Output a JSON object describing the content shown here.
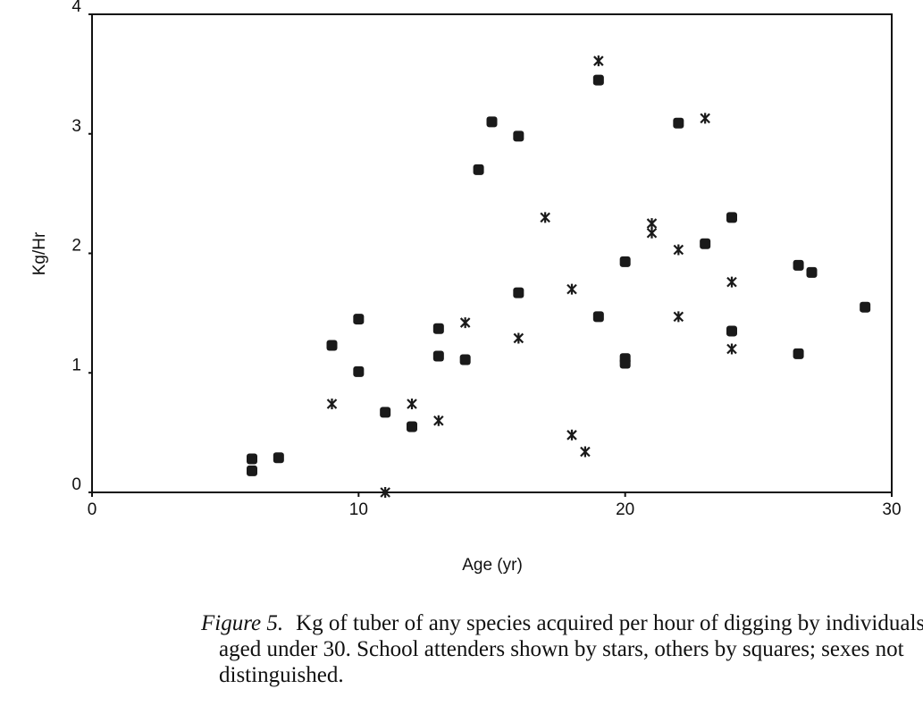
{
  "chart_data": {
    "type": "scatter",
    "xlabel": "Age (yr)",
    "ylabel": "Kg/Hr",
    "caption_label": "Figure 5.",
    "caption": "Kg of tuber of any species acquired per hour of digging by individuals aged under 30. School attenders shown by stars, others by squares; sexes not distinguished.",
    "xlim": [
      0,
      30
    ],
    "xticks": [
      0,
      10,
      20,
      30
    ],
    "ylim": [
      0,
      4
    ],
    "yticks": [
      0,
      1,
      2,
      3,
      4
    ],
    "series": [
      {
        "marker": "square",
        "color": "#1a1a1a",
        "x": [
          6,
          6,
          7,
          9,
          10,
          10,
          11,
          12,
          13,
          13,
          14,
          14.5,
          15,
          16,
          16,
          19,
          19,
          20,
          20,
          20,
          22,
          23,
          24,
          24,
          26.5,
          27,
          26.5,
          29
        ],
        "values": [
          0.28,
          0.18,
          0.29,
          1.23,
          1.45,
          1.01,
          0.67,
          0.55,
          1.37,
          1.14,
          1.11,
          2.7,
          3.1,
          2.98,
          1.67,
          3.45,
          1.47,
          1.93,
          1.12,
          1.08,
          3.09,
          2.08,
          2.3,
          1.35,
          1.9,
          1.84,
          1.16,
          1.55
        ]
      },
      {
        "marker": "star",
        "color": "#1a1a1a",
        "x": [
          9,
          11,
          12,
          13,
          14,
          16,
          17,
          18,
          18,
          18.5,
          19,
          21,
          21,
          22,
          22,
          23,
          24,
          24
        ],
        "values": [
          0.74,
          0,
          0.74,
          0.6,
          1.42,
          1.29,
          2.3,
          1.7,
          0.48,
          0.34,
          3.61,
          2.25,
          2.17,
          2.03,
          1.47,
          3.13,
          1.76,
          1.2
        ]
      }
    ]
  }
}
